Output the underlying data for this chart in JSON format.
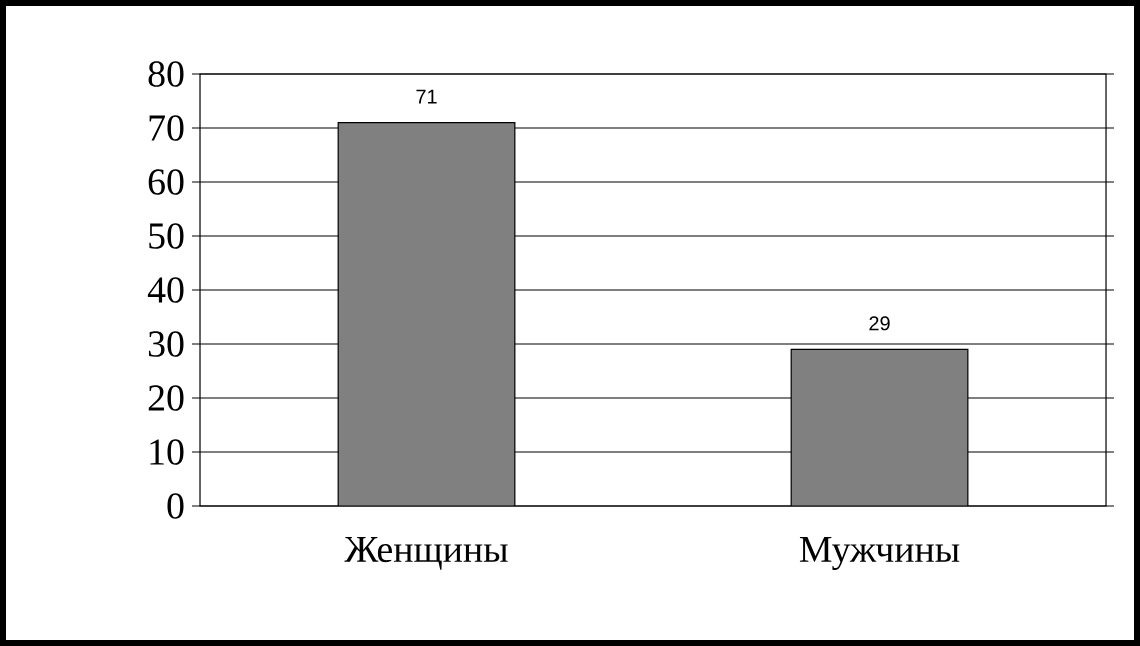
{
  "chart_data": {
    "type": "bar",
    "categories": [
      "Женщины",
      "Мужчины"
    ],
    "values": [
      71,
      29
    ],
    "color": "#808080",
    "ylim": [
      0,
      80
    ],
    "yticks": [
      0,
      10,
      20,
      30,
      40,
      50,
      60,
      70,
      80
    ],
    "grid": "y",
    "data_labels": true
  }
}
